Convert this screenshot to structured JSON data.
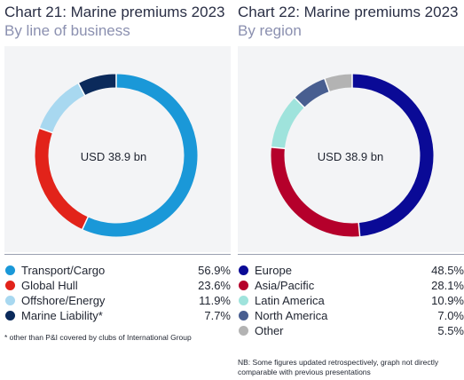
{
  "chart_data": [
    {
      "type": "pie",
      "title": "Chart 21: Marine premiums 2023",
      "subtitle": "By line of business",
      "center_label": "USD 38.9 bn",
      "categories": [
        "Transport/Cargo",
        "Global Hull",
        "Offshore/Energy",
        "Marine Liability*"
      ],
      "values": [
        56.9,
        23.6,
        11.9,
        7.7
      ],
      "value_labels": [
        "56.9%",
        "23.6%",
        "11.9%",
        "7.7%"
      ],
      "colors": [
        "#1a98d8",
        "#e2231a",
        "#a8d8f0",
        "#0b2a5b"
      ],
      "footnote": "* other than P&I covered by clubs of International Group",
      "legend": "below"
    },
    {
      "type": "pie",
      "title": "Chart 22: Marine premiums 2023",
      "subtitle": "By region",
      "center_label": "USD 38.9 bn",
      "categories": [
        "Europe",
        "Asia/Pacific",
        "Latin America",
        "North America",
        "Other"
      ],
      "values": [
        48.5,
        28.1,
        10.9,
        7.0,
        5.5
      ],
      "value_labels": [
        "48.5%",
        "28.1%",
        "10.9%",
        "7.0%",
        "5.5%"
      ],
      "colors": [
        "#0a0a96",
        "#b5002b",
        "#9fe3dc",
        "#485e90",
        "#b3b3b3"
      ],
      "footnote": "NB: Some figures updated retrospectively, graph not directly comparable with previous presentations",
      "legend": "below"
    }
  ]
}
